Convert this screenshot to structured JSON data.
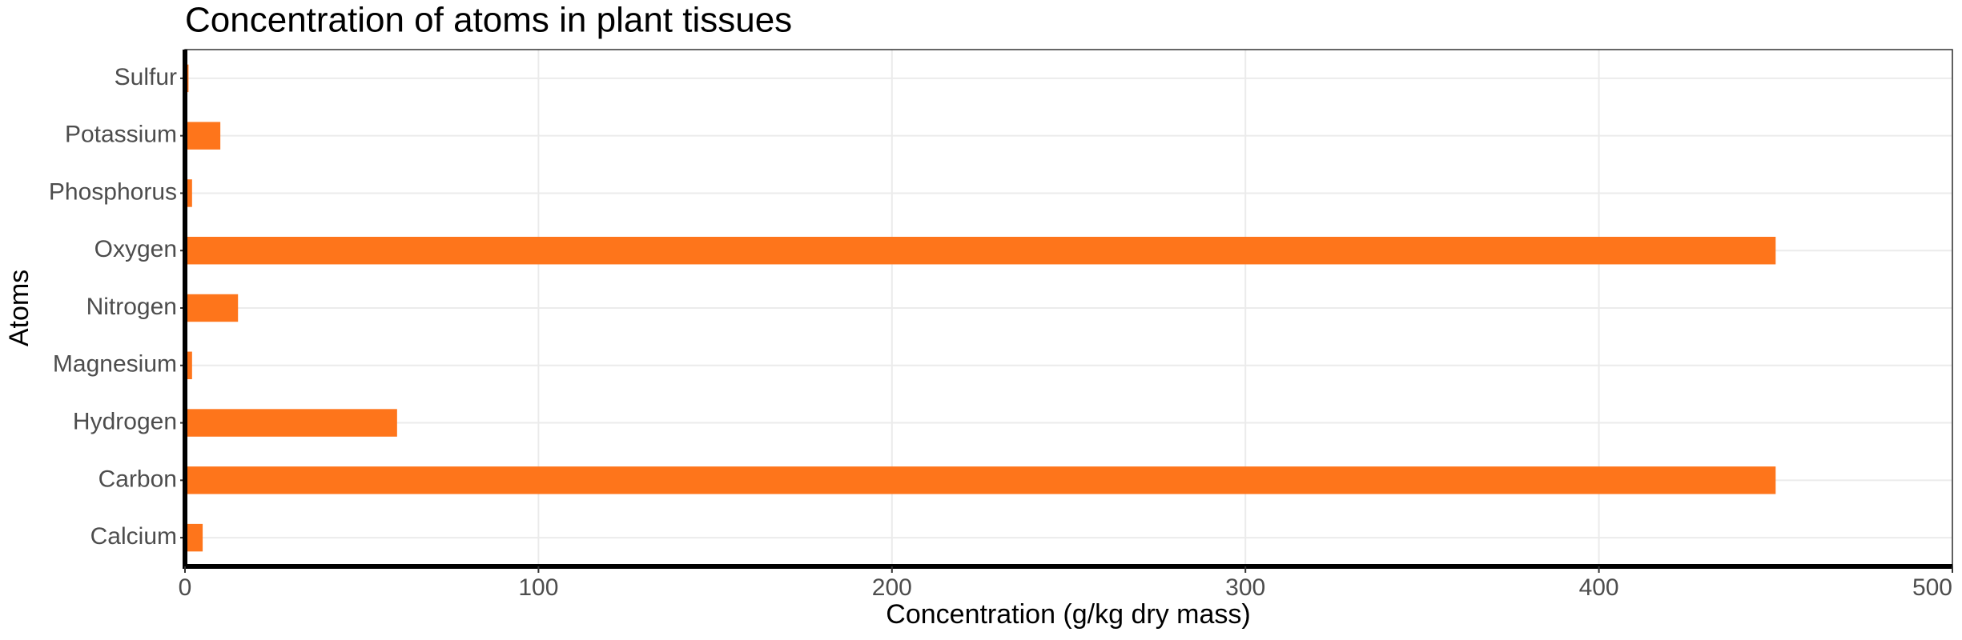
{
  "chart_data": {
    "type": "bar",
    "orientation": "horizontal",
    "title": "Concentration of atoms in plant tissues",
    "x_label": "Concentration (g/kg dry mass)",
    "y_label": "Atoms",
    "categories": [
      "Calcium",
      "Carbon",
      "Hydrogen",
      "Magnesium",
      "Nitrogen",
      "Oxygen",
      "Phosphorus",
      "Potassium",
      "Sulfur"
    ],
    "values": [
      5,
      450,
      60,
      2,
      15,
      450,
      2,
      10,
      1
    ],
    "color": "#fe751b",
    "xlim": [
      0,
      500
    ],
    "xticks": [
      0,
      100,
      200,
      300,
      400,
      500
    ],
    "grid": true
  }
}
